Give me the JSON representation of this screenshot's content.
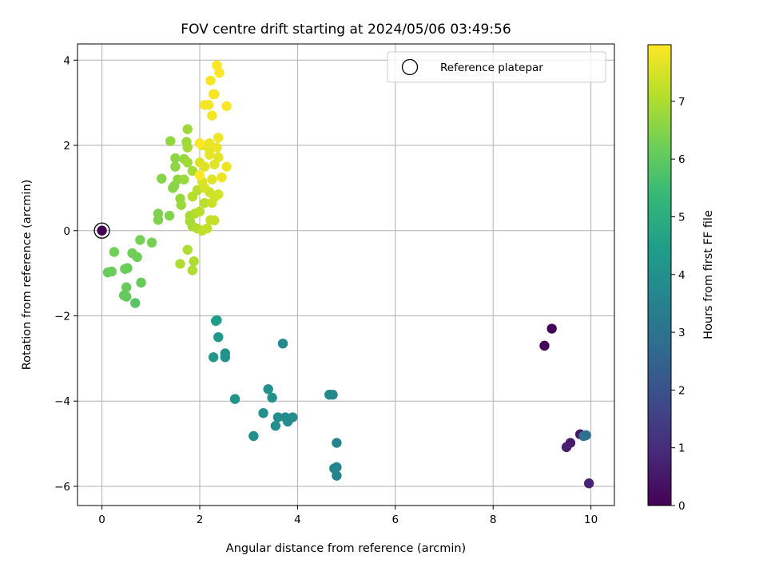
{
  "chart_data": {
    "type": "scatter",
    "title": "FOV centre drift starting at 2024/05/06 03:49:56",
    "xlabel": "Angular distance from reference (arcmin)",
    "ylabel": "Rotation from reference (arcmin)",
    "xlim": [
      -0.5,
      10.48
    ],
    "ylim": [
      -6.45,
      4.38
    ],
    "xticks": [
      0,
      2,
      4,
      6,
      8,
      10
    ],
    "yticks": [
      4,
      2,
      0,
      -2,
      -4,
      -6
    ],
    "xtick_labels": [
      "0",
      "2",
      "4",
      "6",
      "8",
      "10"
    ],
    "ytick_labels": [
      "4",
      "2",
      "0",
      "−2",
      "−4",
      "−6"
    ],
    "grid": true,
    "legend": {
      "location": "top-right",
      "entries": [
        "Reference platepar"
      ]
    },
    "reference_point": {
      "x": 0,
      "y": 0,
      "hours": 0
    },
    "colorbar": {
      "label": "Hours from first FF file",
      "range": [
        0,
        7.98
      ],
      "ticks": [
        0,
        1,
        2,
        3,
        4,
        5,
        6,
        7
      ],
      "tick_labels": [
        "0",
        "1",
        "2",
        "3",
        "4",
        "5",
        "6",
        "7"
      ],
      "colormap": [
        "#440154",
        "#482878",
        "#3e4989",
        "#31688e",
        "#26828e",
        "#1f9e89",
        "#35b779",
        "#6ece58",
        "#b5de2b",
        "#fde725"
      ]
    },
    "points": [
      [
        9.2,
        -2.3,
        0.05
      ],
      [
        9.05,
        -2.7,
        0.1
      ],
      [
        9.78,
        -4.78,
        0.5
      ],
      [
        9.58,
        -4.98,
        0.6
      ],
      [
        9.5,
        -5.08,
        0.7
      ],
      [
        9.96,
        -5.93,
        0.8
      ],
      [
        9.9,
        -4.8,
        2.9
      ],
      [
        9.85,
        -4.82,
        3.0
      ],
      [
        4.8,
        -5.55,
        3.6
      ],
      [
        4.75,
        -5.58,
        3.6
      ],
      [
        4.8,
        -5.75,
        3.65
      ],
      [
        4.8,
        -4.98,
        3.7
      ],
      [
        4.72,
        -3.85,
        3.7
      ],
      [
        4.65,
        -3.85,
        3.75
      ],
      [
        3.7,
        -2.65,
        3.8
      ],
      [
        3.9,
        -4.38,
        3.85
      ],
      [
        3.8,
        -4.48,
        3.85
      ],
      [
        3.6,
        -4.38,
        3.9
      ],
      [
        3.75,
        -4.38,
        3.9
      ],
      [
        3.55,
        -4.58,
        3.95
      ],
      [
        3.1,
        -4.82,
        3.95
      ],
      [
        3.3,
        -4.28,
        4.0
      ],
      [
        3.4,
        -3.72,
        4.0
      ],
      [
        3.48,
        -3.92,
        4.05
      ],
      [
        2.72,
        -3.95,
        4.05
      ],
      [
        2.52,
        -2.97,
        4.1
      ],
      [
        2.52,
        -2.88,
        4.1
      ],
      [
        2.28,
        -2.97,
        4.2
      ],
      [
        2.38,
        -2.5,
        4.25
      ],
      [
        2.33,
        -2.12,
        4.4
      ],
      [
        2.35,
        -2.1,
        4.45
      ],
      [
        0.68,
        -1.7,
        5.9
      ],
      [
        0.5,
        -1.55,
        6.0
      ],
      [
        0.45,
        -1.52,
        6.05
      ],
      [
        0.5,
        -1.33,
        6.1
      ],
      [
        0.12,
        -0.98,
        6.1
      ],
      [
        0.2,
        -0.96,
        6.15
      ],
      [
        0.8,
        -1.22,
        6.1
      ],
      [
        0.52,
        -0.88,
        6.1
      ],
      [
        0.47,
        -0.9,
        6.15
      ],
      [
        0.72,
        -0.62,
        6.2
      ],
      [
        0.62,
        -0.53,
        6.2
      ],
      [
        0.25,
        -0.5,
        6.25
      ],
      [
        0.78,
        -0.22,
        6.3
      ],
      [
        1.02,
        -0.28,
        6.3
      ],
      [
        1.15,
        0.25,
        6.4
      ],
      [
        1.15,
        0.4,
        6.4
      ],
      [
        1.38,
        0.35,
        6.45
      ],
      [
        1.22,
        1.22,
        6.5
      ],
      [
        1.48,
        1.05,
        6.5
      ],
      [
        1.45,
        1.0,
        6.55
      ],
      [
        1.55,
        1.2,
        6.6
      ],
      [
        1.5,
        1.5,
        6.6
      ],
      [
        1.5,
        1.7,
        6.6
      ],
      [
        1.4,
        2.1,
        6.65
      ],
      [
        1.68,
        1.68,
        6.7
      ],
      [
        1.6,
        0.75,
        6.7
      ],
      [
        1.62,
        0.6,
        6.75
      ],
      [
        1.68,
        1.2,
        6.75
      ],
      [
        1.75,
        2.38,
        6.8
      ],
      [
        1.73,
        2.08,
        6.8
      ],
      [
        1.75,
        1.95,
        6.85
      ],
      [
        1.75,
        1.6,
        6.85
      ],
      [
        1.85,
        1.4,
        6.9
      ],
      [
        1.8,
        0.35,
        6.9
      ],
      [
        1.8,
        0.22,
        6.9
      ],
      [
        1.85,
        0.1,
        6.95
      ],
      [
        1.85,
        -0.93,
        7.0
      ],
      [
        1.88,
        -0.72,
        7.0
      ],
      [
        1.75,
        -0.45,
        7.0
      ],
      [
        1.6,
        -0.78,
        7.0
      ],
      [
        1.95,
        0.05,
        7.05
      ],
      [
        1.9,
        0.4,
        7.05
      ],
      [
        1.85,
        0.8,
        7.1
      ],
      [
        1.95,
        0.95,
        7.1
      ],
      [
        2.0,
        0.45,
        7.15
      ],
      [
        2.1,
        0.65,
        7.15
      ],
      [
        2.05,
        0.0,
        7.2
      ],
      [
        2.15,
        0.05,
        7.25
      ],
      [
        2.22,
        0.25,
        7.3
      ],
      [
        2.3,
        0.24,
        7.3
      ],
      [
        2.25,
        0.65,
        7.35
      ],
      [
        2.2,
        0.9,
        7.35
      ],
      [
        2.3,
        0.78,
        7.4
      ],
      [
        2.38,
        0.85,
        7.45
      ],
      [
        2.1,
        1.0,
        7.5
      ],
      [
        2.05,
        1.15,
        7.55
      ],
      [
        2.0,
        1.6,
        7.55
      ],
      [
        2.25,
        1.2,
        7.6
      ],
      [
        2.1,
        1.5,
        7.6
      ],
      [
        2.2,
        1.9,
        7.65
      ],
      [
        2.3,
        1.55,
        7.65
      ],
      [
        2.2,
        1.78,
        7.7
      ],
      [
        2.05,
        2.0,
        7.7
      ],
      [
        2.38,
        1.72,
        7.7
      ],
      [
        2.2,
        2.05,
        7.75
      ],
      [
        2.35,
        1.95,
        7.75
      ],
      [
        2.45,
        1.25,
        7.8
      ],
      [
        2.55,
        1.5,
        7.8
      ],
      [
        2.38,
        2.18,
        7.8
      ],
      [
        2.25,
        2.7,
        7.85
      ],
      [
        2.1,
        2.95,
        7.85
      ],
      [
        2.18,
        2.95,
        7.85
      ],
      [
        2.55,
        2.92,
        7.9
      ],
      [
        2.28,
        3.2,
        7.9
      ],
      [
        2.3,
        3.2,
        7.9
      ],
      [
        2.22,
        3.52,
        7.92
      ],
      [
        2.4,
        3.7,
        7.95
      ],
      [
        2.35,
        3.88,
        7.95
      ],
      [
        2.0,
        2.05,
        7.95
      ],
      [
        2.0,
        1.3,
        7.98
      ]
    ]
  }
}
